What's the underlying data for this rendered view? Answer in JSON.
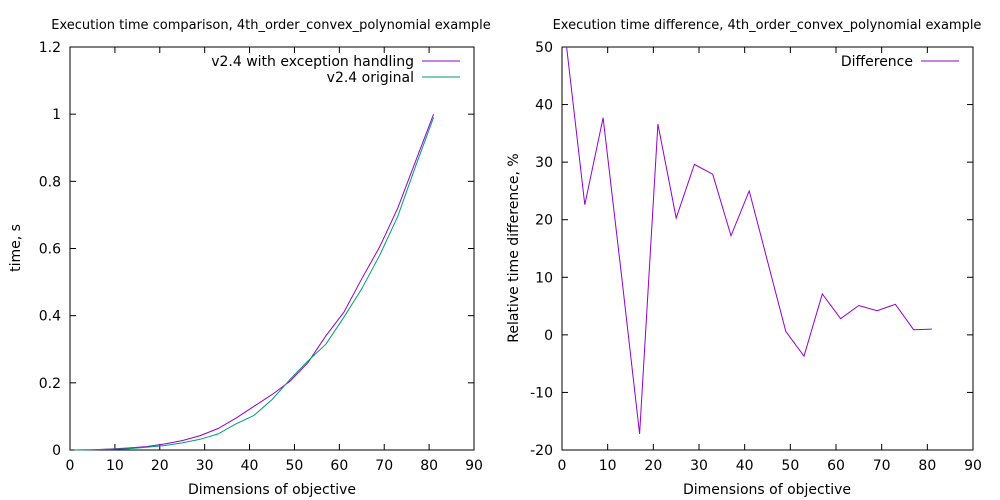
{
  "chart_data": [
    {
      "type": "line",
      "title": "Execution time comparison, 4th_order_convex_polynomial example",
      "xlabel": "Dimensions of objective",
      "ylabel": "time, s",
      "xlim": [
        0,
        90
      ],
      "ylim": [
        0,
        1.2
      ],
      "xticks": [
        "0",
        "10",
        "20",
        "30",
        "40",
        "50",
        "60",
        "70",
        "80",
        "90"
      ],
      "yticks": [
        "0",
        "0.2",
        "0.4",
        "0.6",
        "0.8",
        "1",
        "1.2"
      ],
      "legend_position": "top-right",
      "grid": false,
      "series": [
        {
          "name": "v2.4 with exception handling",
          "color": "#9400d3",
          "x": [
            1,
            5,
            9,
            13,
            17,
            21,
            25,
            29,
            33,
            37,
            41,
            45,
            49,
            53,
            57,
            61,
            65,
            69,
            73,
            77,
            81
          ],
          "y": [
            0.0,
            0.001,
            0.003,
            0.006,
            0.01,
            0.018,
            0.028,
            0.043,
            0.064,
            0.095,
            0.13,
            0.165,
            0.205,
            0.26,
            0.34,
            0.41,
            0.51,
            0.605,
            0.72,
            0.86,
            1.0
          ]
        },
        {
          "name": "v2.4 original",
          "color": "#009e73",
          "x": [
            1,
            5,
            9,
            13,
            17,
            21,
            25,
            29,
            33,
            37,
            41,
            45,
            49,
            53,
            57,
            61,
            65,
            69,
            73,
            77,
            81
          ],
          "y": [
            0.0,
            0.001,
            0.002,
            0.004,
            0.008,
            0.013,
            0.021,
            0.032,
            0.048,
            0.078,
            0.103,
            0.15,
            0.21,
            0.265,
            0.315,
            0.395,
            0.48,
            0.58,
            0.695,
            0.845,
            0.99
          ]
        }
      ]
    },
    {
      "type": "line",
      "title": "Execution time difference, 4th_order_convex_polynomial example",
      "xlabel": "Dimensions of objective",
      "ylabel": "Relative time difference, %",
      "xlim": [
        0,
        90
      ],
      "ylim": [
        -20,
        50
      ],
      "xticks": [
        "0",
        "10",
        "20",
        "30",
        "40",
        "50",
        "60",
        "70",
        "80",
        "90"
      ],
      "yticks": [
        "-20",
        "-10",
        "0",
        "10",
        "20",
        "30",
        "40",
        "50"
      ],
      "legend_position": "top-right",
      "grid": false,
      "series": [
        {
          "name": "Difference",
          "color": "#9400d3",
          "x": [
            1,
            5,
            9,
            13,
            17,
            21,
            25,
            29,
            33,
            37,
            41,
            45,
            49,
            53,
            57,
            61,
            65,
            69,
            73,
            77,
            81
          ],
          "y": [
            50,
            22.6,
            37.7,
            10.5,
            -17.2,
            36.6,
            20.3,
            29.6,
            27.9,
            17.2,
            25.0,
            12.8,
            0.6,
            -3.7,
            7.1,
            2.8,
            5.1,
            4.2,
            5.3,
            0.9,
            1.0
          ]
        }
      ]
    }
  ]
}
